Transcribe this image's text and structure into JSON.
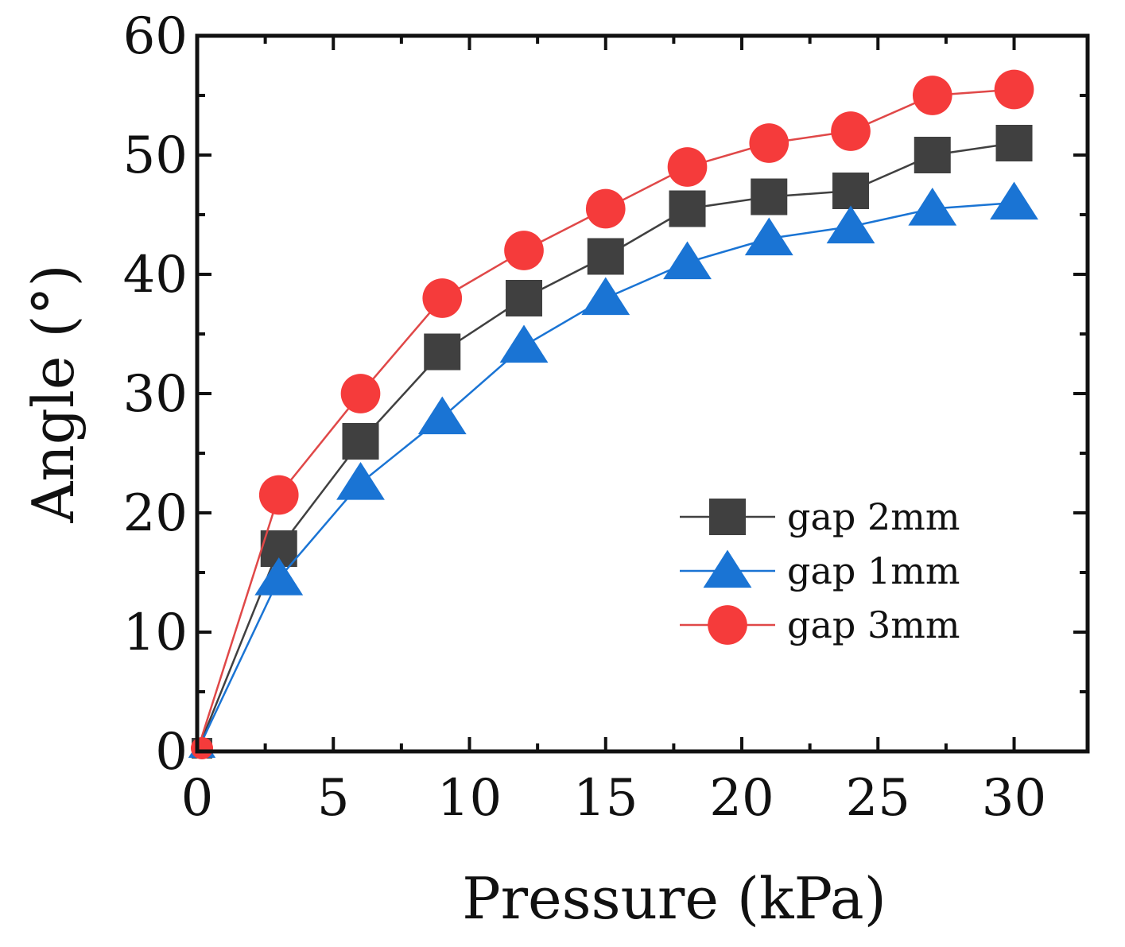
{
  "chart_data": {
    "type": "line",
    "xlabel": "Pressure (kPa)",
    "ylabel": "Angle (°)",
    "xlim": [
      0,
      32.7
    ],
    "ylim": [
      0,
      60
    ],
    "xticks": [
      0,
      5,
      10,
      15,
      20,
      25,
      30
    ],
    "yticks": [
      0,
      10,
      20,
      30,
      40,
      50,
      60
    ],
    "x": [
      0,
      3,
      6,
      9,
      12,
      15,
      18,
      21,
      24,
      27,
      30
    ],
    "legend_position": "lower-right",
    "series": [
      {
        "name": "gap 2mm",
        "marker": "square",
        "color": "#404040",
        "line_color": "#404040",
        "values": [
          0,
          17,
          26,
          33.5,
          38,
          41.5,
          45.5,
          46.5,
          47,
          50,
          51
        ]
      },
      {
        "name": "gap 1mm",
        "marker": "triangle",
        "color": "#1a74d4",
        "line_color": "#1a74d4",
        "values": [
          0,
          14.5,
          22.5,
          28,
          34,
          38,
          41,
          43,
          44,
          45.5,
          46
        ]
      },
      {
        "name": "gap 3mm",
        "marker": "circle",
        "color": "#f53b3b",
        "line_color": "#e04848",
        "values": [
          0,
          21.5,
          30,
          38,
          42,
          45.5,
          49,
          51,
          52,
          55,
          55.5
        ]
      }
    ]
  }
}
